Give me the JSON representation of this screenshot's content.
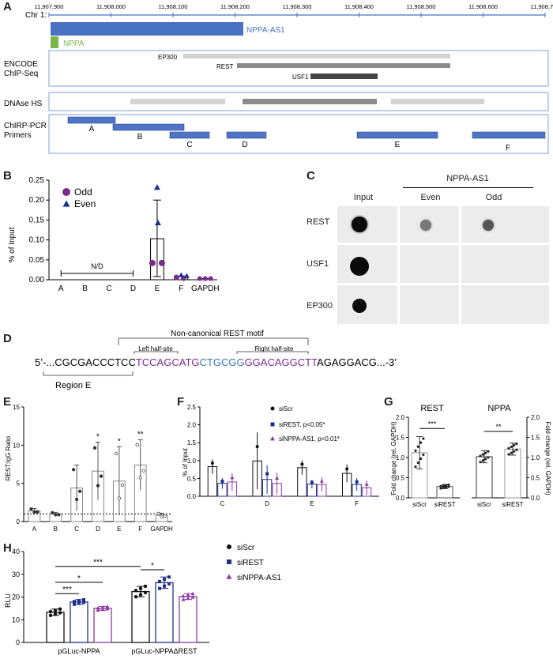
{
  "panel_labels": {
    "A": "A",
    "B": "B",
    "C": "C",
    "D": "D",
    "E": "E",
    "F": "F",
    "G": "G",
    "H": "H"
  },
  "panel_a": {
    "chr_label": "Chr 1:",
    "ticks": [
      "11,907,900",
      "11,908,000",
      "11,908,100",
      "11,908,200",
      "11,908,300",
      "11,908,400",
      "11,908,500",
      "11,908,600",
      "11,908,700"
    ],
    "genes": {
      "nppa_as1": "NPPA-AS1",
      "nppa": "NPPA"
    },
    "tracks": {
      "encode": "ENCODE ChIP-Seq",
      "dnase": "DNAse HS",
      "chirp": "ChIRP-PCR Primers"
    },
    "chip": {
      "ep300": "EP300",
      "rest": "REST",
      "usf1": "USF1"
    },
    "primers": [
      "A",
      "B",
      "C",
      "D",
      "E",
      "F"
    ],
    "colors": {
      "gene_blue": "#4a72c4",
      "nppa_green": "#7ab648",
      "primer_fill": "#4f74c6"
    }
  },
  "chart_data": [
    {
      "panel": "B",
      "type": "bar",
      "ylabel": "% of Input",
      "categories": [
        "A",
        "B",
        "C",
        "D",
        "E",
        "F",
        "GAPDH"
      ],
      "values": [
        0,
        0,
        0,
        0,
        0.103,
        0.008,
        0.003
      ],
      "ylim": [
        0,
        0.25
      ],
      "yticks": [
        "0.00",
        "0.05",
        "0.10",
        "0.15",
        "0.20",
        "0.25"
      ],
      "annotation": "N/D",
      "series": [
        {
          "name": "Odd",
          "color": "#7b2a8e"
        },
        {
          "name": "Even",
          "color": "#1f2f8c"
        }
      ]
    },
    {
      "panel": "E",
      "type": "bar",
      "ylabel": "REST:IgG Ratio",
      "categories": [
        "A",
        "B",
        "C",
        "D",
        "E",
        "F",
        "GAPDH"
      ],
      "values": [
        1.4,
        1.0,
        4.4,
        6.6,
        5.3,
        7.4,
        0.8
      ],
      "ylim": [
        0,
        15
      ],
      "yticks": [
        "0",
        "5",
        "10",
        "15"
      ],
      "significance": [
        "",
        "",
        "",
        "*",
        "*",
        "**",
        ""
      ]
    },
    {
      "panel": "F",
      "type": "bar",
      "ylabel": "% of Input",
      "categories": [
        "C",
        "D",
        "E",
        "F"
      ],
      "ylim": [
        0,
        2.5
      ],
      "yticks": [
        "0.0",
        "0.5",
        "1.0",
        "1.5",
        "2.0",
        "2.5"
      ],
      "series": [
        {
          "name": "siScr",
          "values": [
            0.83,
            0.99,
            0.8,
            0.64
          ],
          "color": "#111111"
        },
        {
          "name": "siREST, p<0.05*",
          "values": [
            0.36,
            0.47,
            0.34,
            0.33
          ],
          "color": "#1f2f8c"
        },
        {
          "name": "siNPPA-AS1, p<0.01*",
          "values": [
            0.4,
            0.36,
            0.33,
            0.24
          ],
          "color": "#8e3aa0"
        }
      ]
    },
    {
      "panel": "G",
      "type": "bar",
      "ylabel": "Fold change (rel. GAPDH)",
      "groups": [
        "REST",
        "NPPA"
      ],
      "categories": [
        "siScr",
        "siREST",
        "siScr",
        "siREST"
      ],
      "values": [
        1.12,
        0.28,
        1.02,
        1.21
      ],
      "ylim": [
        0,
        2.0
      ],
      "yticks": [
        "0.0",
        "0.5",
        "1.0",
        "1.5",
        "2.0"
      ],
      "significance": [
        "***",
        "**"
      ]
    },
    {
      "panel": "H",
      "type": "bar",
      "ylabel": "RLU",
      "categories": [
        "pGLuc-NPPA",
        "pGLuc-NPPAΔREST"
      ],
      "ylim": [
        0,
        40
      ],
      "yticks": [
        "0",
        "10",
        "20",
        "30",
        "40"
      ],
      "series": [
        {
          "name": "siScr",
          "values": [
            13.3,
            22.4
          ],
          "color": "#111111"
        },
        {
          "name": "siREST",
          "values": [
            17.8,
            26.3
          ],
          "color": "#1f2f8c"
        },
        {
          "name": "siNPPA-AS1",
          "values": [
            15.0,
            20.2
          ],
          "color": "#8e3aa0"
        }
      ],
      "significance": [
        "***",
        "*",
        "***",
        "*"
      ]
    }
  ],
  "panel_c": {
    "header": "NPPA-AS1",
    "columns": [
      "Input",
      "Even",
      "Odd"
    ],
    "rows": [
      "REST",
      "USF1",
      "EP300"
    ]
  },
  "panel_d": {
    "motif_title": "Non-canonical REST motif",
    "left": "Left half-site",
    "right": "Right half-site",
    "seq_prefix": "5’-...CGCGACCCTCC",
    "seq_left": "TCCAGCATG",
    "seq_mid": "CTGCGG",
    "seq_right": "GGACAGGCTT",
    "seq_suffix": "AGAGGACG...-3’",
    "region": "Region E"
  }
}
